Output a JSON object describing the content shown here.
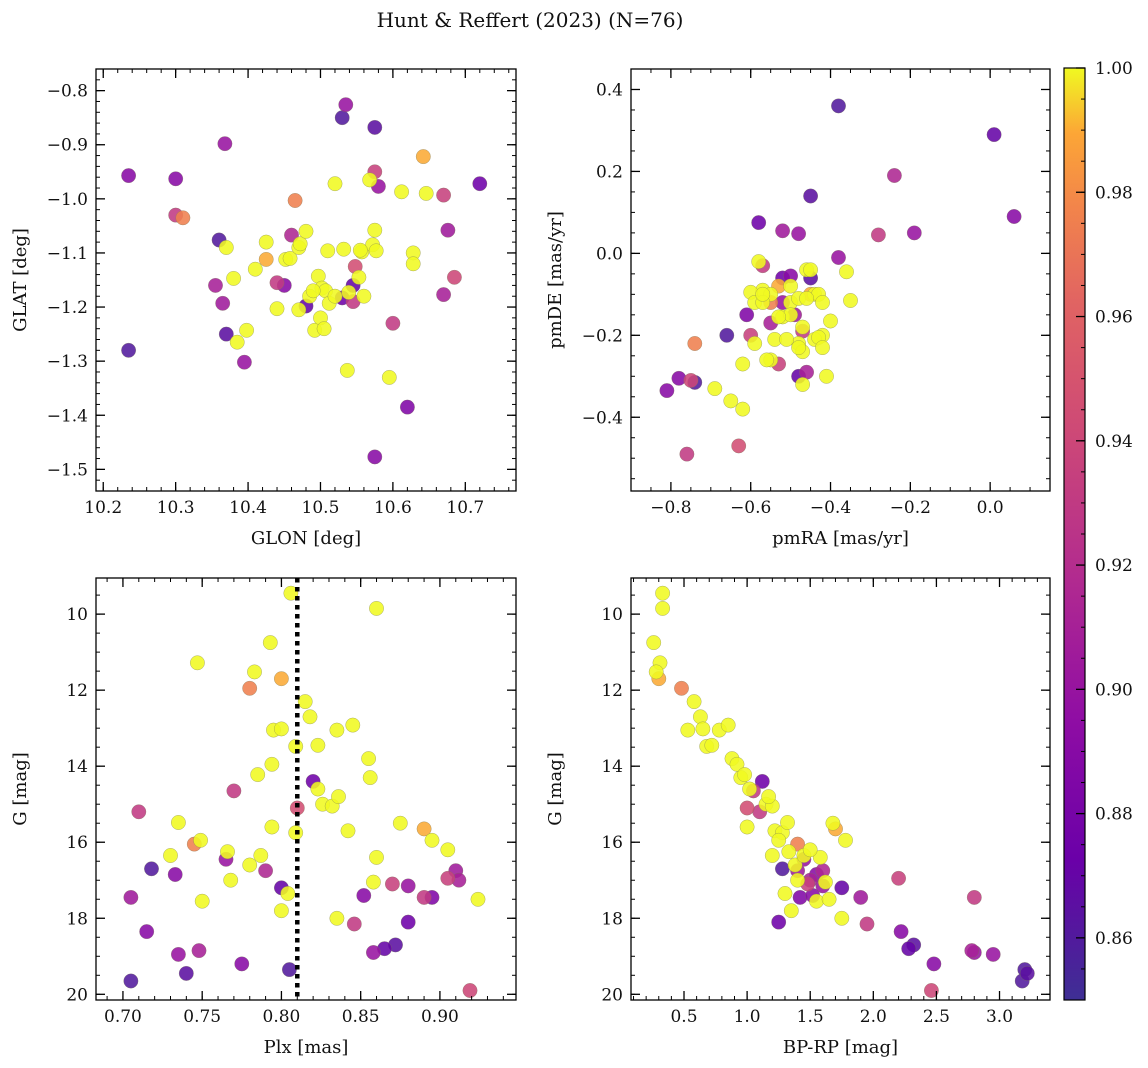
{
  "chart_data": {
    "type": "scatter",
    "title": "Hunt & Reffert (2023) (N=76)",
    "colorbar": {
      "label": "",
      "min": 0.85,
      "max": 1.0,
      "ticks": [
        0.86,
        0.88,
        0.9,
        0.92,
        0.94,
        0.96,
        0.98,
        1.0
      ],
      "tick_labels": [
        "0.86",
        "0.88",
        "0.90",
        "0.92",
        "0.94",
        "0.96",
        "0.98",
        "1.00"
      ],
      "colormap": "plasma"
    },
    "panels": [
      {
        "id": "p1",
        "xlabel": "GLON [deg]",
        "ylabel": "GLAT [deg]",
        "xlim": [
          10.19,
          10.77
        ],
        "ylim": [
          -1.54,
          -0.76
        ],
        "y_inverted": false,
        "xticks": [
          10.2,
          10.3,
          10.4,
          10.5,
          10.6,
          10.7
        ],
        "xtick_labels": [
          "10.2",
          "10.3",
          "10.4",
          "10.5",
          "10.6",
          "10.7"
        ],
        "yticks": [
          -0.8,
          -0.9,
          -1.0,
          -1.1,
          -1.2,
          -1.3,
          -1.4,
          -1.5
        ],
        "ytick_labels": [
          "−0.8",
          "−0.9",
          "−1.0",
          "−1.1",
          "−1.2",
          "−1.3",
          "−1.4",
          "−1.5"
        ],
        "xminor": 0.02,
        "yminor": 0.02
      },
      {
        "id": "p2",
        "xlabel": "pmRA [mas/yr]",
        "ylabel": "pmDE [mas/yr]",
        "xlim": [
          -0.9,
          0.15
        ],
        "ylim": [
          -0.58,
          0.45
        ],
        "y_inverted": false,
        "xticks": [
          -0.8,
          -0.6,
          -0.4,
          -0.2,
          0.0
        ],
        "xtick_labels": [
          "−0.8",
          "−0.6",
          "−0.4",
          "−0.2",
          "0.0"
        ],
        "yticks": [
          0.4,
          0.2,
          0.0,
          -0.2,
          -0.4
        ],
        "ytick_labels": [
          "0.4",
          "0.2",
          "0.0",
          "−0.2",
          "−0.4"
        ],
        "xminor": 0.05,
        "yminor": 0.05
      },
      {
        "id": "p3",
        "xlabel": "Plx [mas]",
        "ylabel": "G [mag]",
        "xlim": [
          0.683,
          0.948
        ],
        "ylim": [
          20.15,
          9.05
        ],
        "y_inverted": true,
        "xticks": [
          0.7,
          0.75,
          0.8,
          0.85,
          0.9
        ],
        "xtick_labels": [
          "0.70",
          "0.75",
          "0.80",
          "0.85",
          "0.90"
        ],
        "yticks": [
          10,
          12,
          14,
          16,
          18,
          20
        ],
        "ytick_labels": [
          "10",
          "12",
          "14",
          "16",
          "18",
          "20"
        ],
        "xminor": 0.01,
        "yminor": 0.5,
        "vline": 0.81
      },
      {
        "id": "p4",
        "xlabel": "BP-RP [mag]",
        "ylabel": "G [mag]",
        "xlim": [
          0.08,
          3.4
        ],
        "ylim": [
          20.15,
          9.05
        ],
        "y_inverted": true,
        "xticks": [
          0.5,
          1.0,
          1.5,
          2.0,
          2.5,
          3.0
        ],
        "xtick_labels": [
          "0.5",
          "1.0",
          "1.5",
          "2.0",
          "2.5",
          "3.0"
        ],
        "yticks": [
          10,
          12,
          14,
          16,
          18,
          20
        ],
        "ytick_labels": [
          "10",
          "12",
          "14",
          "16",
          "18",
          "20"
        ],
        "xminor": 0.1,
        "yminor": 0.5
      }
    ],
    "stars": [
      {
        "glon": 10.235,
        "glat": -0.957,
        "pmra": -0.81,
        "pmde": -0.335,
        "plx": 0.715,
        "g": 18.35,
        "bprp": 2.22,
        "p": 0.89
      },
      {
        "glon": 10.235,
        "glat": -1.28,
        "pmra": -0.74,
        "pmde": -0.315,
        "plx": 0.705,
        "g": 19.65,
        "bprp": 3.18,
        "p": 0.86
      },
      {
        "glon": 10.3,
        "glat": -0.963,
        "pmra": -0.78,
        "pmde": -0.305,
        "plx": 0.733,
        "g": 16.85,
        "bprp": 1.55,
        "p": 0.89
      },
      {
        "glon": 10.3,
        "glat": -1.03,
        "pmra": -0.76,
        "pmde": -0.49,
        "plx": 0.71,
        "g": 15.2,
        "bprp": 1.1,
        "p": 0.93
      },
      {
        "glon": 10.31,
        "glat": -1.035,
        "pmra": -0.74,
        "pmde": -0.22,
        "plx": 0.745,
        "g": 16.05,
        "bprp": 1.4,
        "p": 0.975
      },
      {
        "glon": 10.36,
        "glat": -1.076,
        "pmra": -0.66,
        "pmde": -0.2,
        "plx": 0.718,
        "g": 16.7,
        "bprp": 1.28,
        "p": 0.86
      },
      {
        "glon": 10.355,
        "glat": -1.16,
        "pmra": -0.55,
        "pmde": -0.17,
        "plx": 0.748,
        "g": 18.85,
        "bprp": 2.78,
        "p": 0.91
      },
      {
        "glon": 10.365,
        "glat": -1.193,
        "pmra": -0.52,
        "pmde": 0.055,
        "plx": 0.705,
        "g": 17.45,
        "bprp": 1.9,
        "p": 0.905
      },
      {
        "glon": 10.368,
        "glat": -0.898,
        "pmra": -0.48,
        "pmde": 0.048,
        "plx": 0.735,
        "g": 18.95,
        "bprp": 2.95,
        "p": 0.9
      },
      {
        "glon": 10.37,
        "glat": -1.25,
        "pmra": -0.45,
        "pmde": 0.14,
        "plx": 0.74,
        "g": 19.45,
        "bprp": 3.22,
        "p": 0.865
      },
      {
        "glon": 10.395,
        "glat": -1.302,
        "pmra": -0.38,
        "pmde": -0.01,
        "plx": 0.765,
        "g": 16.45,
        "bprp": 1.45,
        "p": 0.9
      },
      {
        "glon": 10.44,
        "glat": -1.155,
        "pmra": -0.47,
        "pmde": -0.19,
        "plx": 0.77,
        "g": 14.65,
        "bprp": 1.05,
        "p": 0.93
      },
      {
        "glon": 10.45,
        "glat": -1.16,
        "pmra": -0.5,
        "pmde": -0.055,
        "plx": 0.775,
        "g": 19.2,
        "bprp": 2.48,
        "p": 0.89
      },
      {
        "glon": 10.48,
        "glat": -1.198,
        "pmra": -0.48,
        "pmde": -0.3,
        "plx": 0.8,
        "g": 17.2,
        "bprp": 1.75,
        "p": 0.87
      },
      {
        "glon": 10.46,
        "glat": -1.067,
        "pmra": -0.24,
        "pmde": 0.19,
        "plx": 0.79,
        "g": 16.75,
        "bprp": 1.6,
        "p": 0.915
      },
      {
        "glon": 10.53,
        "glat": -1.183,
        "pmra": -0.58,
        "pmde": 0.075,
        "plx": 0.82,
        "g": 14.4,
        "bprp": 1.12,
        "p": 0.875
      },
      {
        "glon": 10.53,
        "glat": -0.85,
        "pmra": -0.38,
        "pmde": 0.36,
        "plx": 0.805,
        "g": 19.35,
        "bprp": 3.2,
        "p": 0.86
      },
      {
        "glon": 10.535,
        "glat": -0.826,
        "pmra": -0.19,
        "pmde": 0.05,
        "plx": 0.858,
        "g": 18.9,
        "bprp": 2.8,
        "p": 0.9
      },
      {
        "glon": 10.545,
        "glat": -1.16,
        "pmra": 0.01,
        "pmde": 0.29,
        "plx": 0.865,
        "g": 18.8,
        "bprp": 2.28,
        "p": 0.87
      },
      {
        "glon": 10.545,
        "glat": -1.19,
        "pmra": -0.28,
        "pmde": 0.045,
        "plx": 0.846,
        "g": 18.15,
        "bprp": 1.95,
        "p": 0.93
      },
      {
        "glon": 10.548,
        "glat": -1.125,
        "pmra": -0.63,
        "pmde": -0.47,
        "plx": 0.81,
        "g": 15.1,
        "bprp": 1.0,
        "p": 0.945
      },
      {
        "glon": 10.575,
        "glat": -0.95,
        "pmra": -0.53,
        "pmde": -0.27,
        "plx": 0.87,
        "g": 17.1,
        "bprp": 1.48,
        "p": 0.935
      },
      {
        "glon": 10.575,
        "glat": -0.868,
        "pmra": -0.45,
        "pmde": -0.06,
        "plx": 0.872,
        "g": 18.7,
        "bprp": 2.32,
        "p": 0.865
      },
      {
        "glon": 10.575,
        "glat": -1.477,
        "pmra": 0.06,
        "pmde": 0.09,
        "plx": 0.852,
        "g": 17.4,
        "bprp": 1.52,
        "p": 0.89
      },
      {
        "glon": 10.58,
        "glat": -0.977,
        "pmra": -0.52,
        "pmde": -0.12,
        "plx": 0.88,
        "g": 17.15,
        "bprp": 1.6,
        "p": 0.9
      },
      {
        "glon": 10.6,
        "glat": -1.23,
        "pmra": -0.57,
        "pmde": -0.03,
        "plx": 0.89,
        "g": 17.45,
        "bprp": 2.8,
        "p": 0.93
      },
      {
        "glon": 10.62,
        "glat": -1.385,
        "pmra": -0.61,
        "pmde": -0.15,
        "plx": 0.895,
        "g": 17.45,
        "bprp": 1.42,
        "p": 0.885
      },
      {
        "glon": 10.67,
        "glat": -0.993,
        "pmra": -0.6,
        "pmde": -0.2,
        "plx": 0.905,
        "g": 16.95,
        "bprp": 2.2,
        "p": 0.935
      },
      {
        "glon": 10.676,
        "glat": -1.058,
        "pmra": -0.49,
        "pmde": -0.15,
        "plx": 0.91,
        "g": 16.75,
        "bprp": 1.4,
        "p": 0.905
      },
      {
        "glon": 10.67,
        "glat": -1.177,
        "pmra": -0.46,
        "pmde": -0.29,
        "plx": 0.912,
        "g": 17.0,
        "bprp": 1.5,
        "p": 0.91
      },
      {
        "glon": 10.685,
        "glat": -1.145,
        "pmra": -0.75,
        "pmde": -0.31,
        "plx": 0.919,
        "g": 19.9,
        "bprp": 2.46,
        "p": 0.94
      },
      {
        "glon": 10.72,
        "glat": -0.972,
        "pmra": -0.52,
        "pmde": -0.06,
        "plx": 0.88,
        "g": 18.1,
        "bprp": 1.25,
        "p": 0.875
      },
      {
        "glon": 10.465,
        "glat": -1.003,
        "pmra": -0.55,
        "pmde": -0.12,
        "plx": 0.78,
        "g": 11.95,
        "bprp": 0.48,
        "p": 0.975
      },
      {
        "glon": 10.37,
        "glat": -1.09,
        "pmra": -0.58,
        "pmde": -0.02,
        "plx": 0.806,
        "g": 9.45,
        "bprp": 0.33,
        "p": 1.0
      },
      {
        "glon": 10.38,
        "glat": -1.147,
        "pmra": -0.57,
        "pmde": -0.09,
        "plx": 0.86,
        "g": 9.85,
        "bprp": 0.33,
        "p": 1.0
      },
      {
        "glon": 10.385,
        "glat": -1.265,
        "pmra": -0.6,
        "pmde": -0.095,
        "plx": 0.793,
        "g": 10.75,
        "bprp": 0.26,
        "p": 1.0
      },
      {
        "glon": 10.398,
        "glat": -1.243,
        "pmra": -0.59,
        "pmde": -0.12,
        "plx": 0.747,
        "g": 11.28,
        "bprp": 0.31,
        "p": 1.0
      },
      {
        "glon": 10.41,
        "glat": -1.13,
        "pmra": -0.55,
        "pmde": -0.1,
        "plx": 0.783,
        "g": 11.52,
        "bprp": 0.28,
        "p": 1.0
      },
      {
        "glon": 10.425,
        "glat": -1.112,
        "pmra": -0.53,
        "pmde": -0.08,
        "plx": 0.8,
        "g": 11.7,
        "bprp": 0.3,
        "p": 0.99
      },
      {
        "glon": 10.425,
        "glat": -1.08,
        "pmra": -0.5,
        "pmde": -0.12,
        "plx": 0.815,
        "g": 12.3,
        "bprp": 0.58,
        "p": 1.0
      },
      {
        "glon": 10.44,
        "glat": -1.203,
        "pmra": -0.48,
        "pmde": -0.11,
        "plx": 0.818,
        "g": 12.7,
        "bprp": 0.63,
        "p": 1.0
      },
      {
        "glon": 10.452,
        "glat": -1.112,
        "pmra": -0.46,
        "pmde": -0.04,
        "plx": 0.795,
        "g": 13.05,
        "bprp": 0.53,
        "p": 1.0
      },
      {
        "glon": 10.458,
        "glat": -1.11,
        "pmra": -0.44,
        "pmde": -0.1,
        "plx": 0.8,
        "g": 13.02,
        "bprp": 0.65,
        "p": 1.0
      },
      {
        "glon": 10.47,
        "glat": -1.09,
        "pmra": -0.45,
        "pmde": -0.04,
        "plx": 0.809,
        "g": 13.48,
        "bprp": 0.68,
        "p": 1.0
      },
      {
        "glon": 10.472,
        "glat": -1.083,
        "pmra": -0.43,
        "pmde": -0.1,
        "plx": 0.823,
        "g": 13.45,
        "bprp": 0.72,
        "p": 1.0
      },
      {
        "glon": 10.47,
        "glat": -1.205,
        "pmra": -0.42,
        "pmde": -0.2,
        "plx": 0.835,
        "g": 13.05,
        "bprp": 0.78,
        "p": 1.0
      },
      {
        "glon": 10.48,
        "glat": -1.06,
        "pmra": -0.4,
        "pmde": -0.165,
        "plx": 0.845,
        "g": 12.92,
        "bprp": 0.85,
        "p": 1.0
      },
      {
        "glon": 10.485,
        "glat": -1.18,
        "pmra": -0.36,
        "pmde": -0.045,
        "plx": 0.855,
        "g": 13.8,
        "bprp": 0.88,
        "p": 1.0
      },
      {
        "glon": 10.492,
        "glat": -1.243,
        "pmra": -0.35,
        "pmde": -0.115,
        "plx": 0.856,
        "g": 14.3,
        "bprp": 0.95,
        "p": 1.0
      },
      {
        "glon": 10.497,
        "glat": -1.143,
        "pmra": -0.52,
        "pmde": -0.155,
        "plx": 0.794,
        "g": 13.95,
        "bprp": 0.92,
        "p": 1.0
      },
      {
        "glon": 10.5,
        "glat": -1.22,
        "pmra": -0.54,
        "pmde": -0.21,
        "plx": 0.785,
        "g": 14.22,
        "bprp": 0.98,
        "p": 1.0
      },
      {
        "glon": 10.502,
        "glat": -1.165,
        "pmra": -0.55,
        "pmde": -0.26,
        "plx": 0.794,
        "g": 15.6,
        "bprp": 1.0,
        "p": 1.0
      },
      {
        "glon": 10.505,
        "glat": -1.24,
        "pmra": -0.5,
        "pmde": -0.15,
        "plx": 0.823,
        "g": 14.6,
        "bprp": 1.02,
        "p": 1.0
      },
      {
        "glon": 10.507,
        "glat": -1.17,
        "pmra": -0.48,
        "pmde": -0.22,
        "plx": 0.826,
        "g": 15.0,
        "bprp": 1.15,
        "p": 1.0
      },
      {
        "glon": 10.51,
        "glat": -1.096,
        "pmra": -0.47,
        "pmde": -0.24,
        "plx": 0.832,
        "g": 15.05,
        "bprp": 1.2,
        "p": 1.0
      },
      {
        "glon": 10.512,
        "glat": -1.193,
        "pmra": -0.46,
        "pmde": -0.11,
        "plx": 0.836,
        "g": 14.8,
        "bprp": 1.17,
        "p": 1.0
      },
      {
        "glon": 10.52,
        "glat": -0.972,
        "pmra": -0.44,
        "pmde": -0.21,
        "plx": 0.842,
        "g": 15.7,
        "bprp": 1.22,
        "p": 1.0
      },
      {
        "glon": 10.532,
        "glat": -1.093,
        "pmra": -0.43,
        "pmde": -0.205,
        "plx": 0.809,
        "g": 15.75,
        "bprp": 1.28,
        "p": 1.0
      },
      {
        "glon": 10.537,
        "glat": -1.317,
        "pmra": -0.42,
        "pmde": -0.23,
        "plx": 0.804,
        "g": 17.35,
        "bprp": 1.3,
        "p": 1.0
      },
      {
        "glon": 10.539,
        "glat": -1.173,
        "pmra": -0.41,
        "pmde": -0.3,
        "plx": 0.8,
        "g": 17.8,
        "bprp": 1.35,
        "p": 1.0
      },
      {
        "glon": 10.553,
        "glat": -1.145,
        "pmra": -0.62,
        "pmde": -0.38,
        "plx": 0.78,
        "g": 16.6,
        "bprp": 1.38,
        "p": 1.0
      },
      {
        "glon": 10.557,
        "glat": -1.098,
        "pmra": -0.65,
        "pmde": -0.36,
        "plx": 0.766,
        "g": 16.25,
        "bprp": 1.33,
        "p": 1.0
      },
      {
        "glon": 10.56,
        "glat": -1.18,
        "pmra": -0.69,
        "pmde": -0.33,
        "plx": 0.768,
        "g": 17.0,
        "bprp": 1.4,
        "p": 1.0
      },
      {
        "glon": 10.568,
        "glat": -0.965,
        "pmra": -0.62,
        "pmde": -0.27,
        "plx": 0.787,
        "g": 16.35,
        "bprp": 1.45,
        "p": 1.0
      },
      {
        "glon": 10.572,
        "glat": -1.085,
        "pmra": -0.57,
        "pmde": -0.12,
        "plx": 0.735,
        "g": 15.48,
        "bprp": 1.32,
        "p": 1.0
      },
      {
        "glon": 10.575,
        "glat": -1.058,
        "pmra": -0.56,
        "pmde": -0.26,
        "plx": 0.749,
        "g": 15.95,
        "bprp": 1.25,
        "p": 1.0
      },
      {
        "glon": 10.577,
        "glat": -1.096,
        "pmra": -0.59,
        "pmde": -0.22,
        "plx": 0.73,
        "g": 16.35,
        "bprp": 1.2,
        "p": 1.0
      },
      {
        "glon": 10.595,
        "glat": -1.33,
        "pmra": -0.53,
        "pmde": -0.155,
        "plx": 0.75,
        "g": 17.55,
        "bprp": 1.55,
        "p": 1.0
      },
      {
        "glon": 10.612,
        "glat": -0.987,
        "pmra": -0.51,
        "pmde": -0.21,
        "plx": 0.858,
        "g": 17.05,
        "bprp": 1.62,
        "p": 1.0
      },
      {
        "glon": 10.628,
        "glat": -1.1,
        "pmra": -0.48,
        "pmde": -0.23,
        "plx": 0.86,
        "g": 16.4,
        "bprp": 1.58,
        "p": 1.0
      },
      {
        "glon": 10.628,
        "glat": -1.12,
        "pmra": -0.47,
        "pmde": -0.32,
        "plx": 0.875,
        "g": 15.5,
        "bprp": 1.68,
        "p": 1.0
      },
      {
        "glon": 10.642,
        "glat": -0.922,
        "pmra": -0.45,
        "pmde": -0.1,
        "plx": 0.89,
        "g": 15.65,
        "bprp": 1.7,
        "p": 0.99
      },
      {
        "glon": 10.646,
        "glat": -0.99,
        "pmra": -0.42,
        "pmde": -0.12,
        "plx": 0.895,
        "g": 15.95,
        "bprp": 1.78,
        "p": 1.0
      },
      {
        "glon": 10.52,
        "glat": -1.18,
        "pmra": -0.5,
        "pmde": -0.08,
        "plx": 0.905,
        "g": 16.2,
        "bprp": 1.5,
        "p": 1.0
      },
      {
        "glon": 10.49,
        "glat": -1.17,
        "pmra": -0.47,
        "pmde": -0.18,
        "plx": 0.924,
        "g": 17.5,
        "bprp": 1.65,
        "p": 1.0
      },
      {
        "glon": 10.555,
        "glat": -1.095,
        "pmra": -0.57,
        "pmde": -0.1,
        "plx": 0.835,
        "g": 18.0,
        "bprp": 1.75,
        "p": 1.0
      }
    ]
  }
}
